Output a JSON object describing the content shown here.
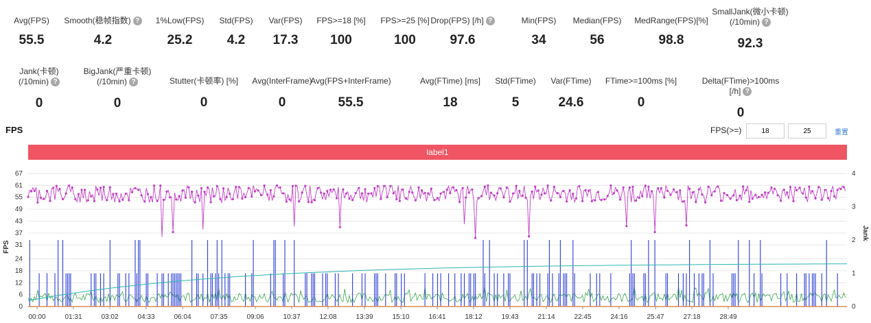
{
  "stats_row1": [
    {
      "label": "Avg(FPS)",
      "value": "55.5",
      "help": false
    },
    {
      "label": "Smooth(稳帧指数)",
      "value": "4.2",
      "help": true
    },
    {
      "label": "1%Low(FPS)",
      "value": "25.2",
      "help": false
    },
    {
      "label": "Std(FPS)",
      "value": "4.2",
      "help": false
    },
    {
      "label": "Var(FPS)",
      "value": "17.3",
      "help": false
    },
    {
      "label": "FPS>=18 [%]",
      "value": "100",
      "help": false
    },
    {
      "label": "FPS>=25 [%]",
      "value": "100",
      "help": false
    },
    {
      "label": "Drop(FPS) [/h]",
      "value": "97.6",
      "help": true
    },
    {
      "label": "Min(FPS)",
      "value": "34",
      "help": false
    },
    {
      "label": "Median(FPS)",
      "value": "56",
      "help": false
    },
    {
      "label": "MedRange(FPS)[%]",
      "value": "98.8",
      "help": false
    },
    {
      "label": "SmallJank(微小卡顿)",
      "label2": "(/10min)",
      "value": "92.3",
      "help": true
    }
  ],
  "stats_row2": [
    {
      "label": "Jank(卡顿)",
      "label2": "(/10min)",
      "value": "0",
      "help": true
    },
    {
      "label": "BigJank(严重卡顿)",
      "label2": "(/10min)",
      "value": "0",
      "help": true
    },
    {
      "label": "Stutter(卡顿率) [%]",
      "value": "0",
      "help": false
    },
    {
      "label": "Avg(InterFrame)",
      "value": "0",
      "help": false
    },
    {
      "label": "Avg(FPS+InterFrame)",
      "value": "55.5",
      "help": false
    },
    {
      "label": "Avg(FTime) [ms]",
      "value": "18",
      "help": false
    },
    {
      "label": "Std(FTime)",
      "value": "5",
      "help": false
    },
    {
      "label": "Var(FTime)",
      "value": "24.6",
      "help": false
    },
    {
      "label": "FTime>=100ms [%]",
      "value": "0",
      "help": false
    },
    {
      "label": "Delta(FTime)>100ms [/h]",
      "value": "0",
      "help": true
    }
  ],
  "section_title": "FPS",
  "threshold": {
    "label": "FPS(>=)",
    "low": "18",
    "high": "25",
    "reset": "重置"
  },
  "label_bar": "label1",
  "chart_data": {
    "type": "line",
    "y_left": {
      "label": "FPS",
      "ticks": [
        0,
        6,
        12,
        18,
        24,
        31,
        37,
        43,
        49,
        55,
        61,
        67
      ],
      "ylim": [
        0,
        67
      ]
    },
    "y_right": {
      "label": "Jank",
      "ticks": [
        0,
        1,
        2,
        3,
        4
      ],
      "ylim": [
        0,
        4
      ]
    },
    "x_ticks": [
      "00:00",
      "01:31",
      "03:02",
      "04:33",
      "06:04",
      "07:35",
      "09:06",
      "10:37",
      "12:08",
      "13:39",
      "15:10",
      "16:41",
      "18:12",
      "19:43",
      "21:14",
      "22:45",
      "24:16",
      "25:47",
      "27:18",
      "28:49"
    ],
    "series": [
      {
        "axis": "left",
        "color": "#c23ec7",
        "mean": 56,
        "min": 34,
        "max": 61
      },
      {
        "axis": "left",
        "color": "#3aa84a",
        "description_values": [
          0,
          4,
          8
        ]
      },
      {
        "axis": "left",
        "color": "#2bb5b0",
        "start": 3,
        "end": 21.5
      },
      {
        "axis": "right",
        "color": "#2a3ed6",
        "levels": [
          0,
          1,
          2
        ]
      }
    ],
    "grid": true
  },
  "colors": {
    "fps": "#c23ec7",
    "ftime": "#3aa84a",
    "trend": "#2bb5b0",
    "jank": "#2a3ed6",
    "label_bar": "#ef5563"
  }
}
